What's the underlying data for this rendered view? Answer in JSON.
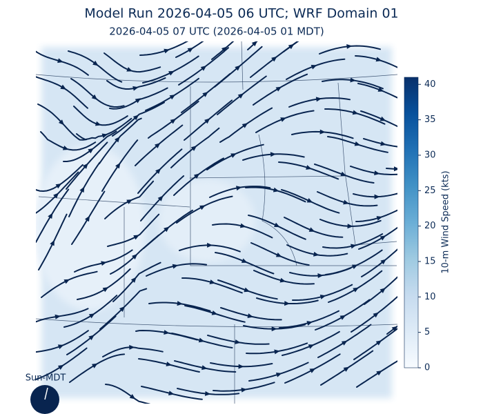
{
  "header": {
    "title": "Model Run 2026-04-05 06 UTC; WRF Domain 01",
    "subtitle": "2026-04-05 07 UTC  (2026-04-05 01 MDT)"
  },
  "colorbar": {
    "label": "10-m Wind Speed (kts)",
    "lim": [
      0,
      41
    ],
    "ticks": [
      0,
      5,
      10,
      15,
      20,
      25,
      30,
      35,
      40
    ]
  },
  "clock": {
    "label": "Sun-MDT"
  }
}
